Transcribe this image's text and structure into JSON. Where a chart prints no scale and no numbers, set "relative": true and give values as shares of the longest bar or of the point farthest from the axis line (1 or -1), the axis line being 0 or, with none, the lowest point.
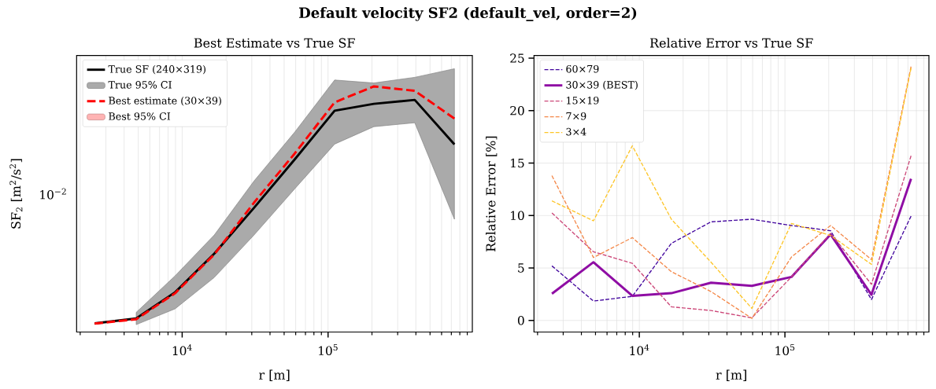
{
  "chart_data": [
    {
      "type": "line",
      "relative": true,
      "title": "Best Estimate vs True SF",
      "xlabel": "r [m]",
      "ylabel": "SF$_{2}$ [m$^{2}$/s$^{2}$]",
      "annotations": [
        "Default velocity SF2 (default_vel, order=2)",
        "10$^{−2}$"
      ],
      "x": [
        2510,
        4840,
        8950,
        16600,
        31100,
        59300,
        110900,
        206000,
        393000,
        735000
      ],
      "series": [
        {
          "name": "True SF (240×319)",
          "type": "line",
          "line_style": "solid",
          "color": "#000000",
          "values": [
            0.0349,
            0.0556,
            0.162,
            0.319,
            0.506,
            0.704,
            0.901,
            0.929,
            0.945,
            0.764
          ]
        },
        {
          "name": "True 95% CI",
          "type": "line",
          "color": "#aaaaaa",
          "values": [
            null,
            null,
            null,
            null,
            null,
            null,
            null,
            null,
            null,
            null
          ],
          "lower": [
            null,
            0.03,
            0.0945,
            0.222,
            0.395,
            0.584,
            0.765,
            0.836,
            0.852,
            0.459
          ],
          "upper": [
            null,
            0.0799,
            0.229,
            0.395,
            0.615,
            0.815,
            1.026,
            1.014,
            1.037,
            1.072
          ]
        },
        {
          "name": "Best estimate (30×39)",
          "type": "line",
          "line_style": "dashed",
          "color": "#ff0000",
          "values": [
            0.0342,
            0.052,
            0.158,
            0.316,
            0.527,
            0.728,
            0.935,
            1.0,
            0.982,
            0.869
          ]
        },
        {
          "name": "Best 95% CI",
          "type": "line",
          "color": "#ffb3b3",
          "values": [
            null,
            null,
            null,
            null,
            null,
            null,
            null,
            null,
            null,
            null
          ],
          "lower": [
            0.033,
            0.0497,
            0.153,
            null,
            null,
            null,
            null,
            null,
            null,
            null
          ],
          "upper": [
            0.0353,
            0.0538,
            0.162,
            null,
            null,
            null,
            null,
            null,
            null,
            null
          ]
        }
      ],
      "xlim": [
        1890,
        975000
      ],
      "xticks": [
        {
          "value": 2000,
          "label": null
        },
        {
          "value": 3000,
          "label": null
        },
        {
          "value": 4000,
          "label": null
        },
        {
          "value": 5000,
          "label": null
        },
        {
          "value": 6000,
          "label": null
        },
        {
          "value": 7000,
          "label": null
        },
        {
          "value": 8000,
          "label": null
        },
        {
          "value": 9000,
          "label": null
        },
        {
          "value": 10000,
          "label": "10$^{4}$"
        },
        {
          "value": 20000,
          "label": null
        },
        {
          "value": 30000,
          "label": null
        },
        {
          "value": 40000,
          "label": null
        },
        {
          "value": 50000,
          "label": null
        },
        {
          "value": 60000,
          "label": null
        },
        {
          "value": 70000,
          "label": null
        },
        {
          "value": 80000,
          "label": null
        },
        {
          "value": 90000,
          "label": null
        },
        {
          "value": 100000,
          "label": "10$^{5}$"
        },
        {
          "value": 200000,
          "label": null
        },
        {
          "value": 300000,
          "label": null
        },
        {
          "value": 400000,
          "label": null
        },
        {
          "value": 500000,
          "label": null
        },
        {
          "value": 600000,
          "label": null
        },
        {
          "value": 700000,
          "label": null
        },
        {
          "value": 800000,
          "label": null
        },
        {
          "value": 900000,
          "label": null
        }
      ],
      "log": "x",
      "grid": "x",
      "legend": "top left"
    },
    {
      "type": "line",
      "title": "Relative Error vs True SF",
      "xlabel": "r [m]",
      "ylabel": "Relative Error [%]",
      "x": [
        2510,
        4840,
        8950,
        16600,
        31100,
        59300,
        110900,
        206000,
        393000,
        735000
      ],
      "series": [
        {
          "name": "60×79",
          "line_style": "dashed",
          "color": "#41049d",
          "values": [
            5.2,
            1.85,
            2.3,
            7.35,
            9.4,
            9.65,
            9.05,
            8.55,
            2.0,
            9.95
          ]
        },
        {
          "name": "30×39 (BEST)",
          "line_style": "solid",
          "color": "#8f0da4",
          "values": [
            2.55,
            5.55,
            2.35,
            2.6,
            3.6,
            3.3,
            4.15,
            8.2,
            2.45,
            13.5
          ]
        },
        {
          "name": "15×19",
          "line_style": "dashed",
          "color": "#cc4778",
          "values": [
            10.25,
            6.55,
            5.45,
            1.3,
            0.95,
            0.25,
            4.15,
            8.3,
            3.45,
            15.7
          ]
        },
        {
          "name": "7×9",
          "line_style": "dashed",
          "color": "#f48849",
          "values": [
            13.8,
            6.0,
            7.9,
            4.65,
            2.75,
            0.2,
            6.05,
            9.05,
            5.8,
            24.2
          ]
        },
        {
          "name": "3×4",
          "line_style": "dashed",
          "color": "#fdc527",
          "values": [
            11.4,
            9.5,
            16.65,
            9.65,
            5.55,
            1.15,
            9.25,
            8.1,
            5.35,
            24.05
          ]
        }
      ],
      "xlim": [
        1890,
        975000
      ],
      "ylim": [
        -1.1,
        25.25
      ],
      "xticks": [
        {
          "value": 2000,
          "label": null
        },
        {
          "value": 3000,
          "label": null
        },
        {
          "value": 4000,
          "label": null
        },
        {
          "value": 5000,
          "label": null
        },
        {
          "value": 6000,
          "label": null
        },
        {
          "value": 7000,
          "label": null
        },
        {
          "value": 8000,
          "label": null
        },
        {
          "value": 9000,
          "label": null
        },
        {
          "value": 10000,
          "label": "10$^{4}$"
        },
        {
          "value": 20000,
          "label": null
        },
        {
          "value": 30000,
          "label": null
        },
        {
          "value": 40000,
          "label": null
        },
        {
          "value": 50000,
          "label": null
        },
        {
          "value": 60000,
          "label": null
        },
        {
          "value": 70000,
          "label": null
        },
        {
          "value": 80000,
          "label": null
        },
        {
          "value": 90000,
          "label": null
        },
        {
          "value": 100000,
          "label": "10$^{5}$"
        },
        {
          "value": 200000,
          "label": null
        },
        {
          "value": 300000,
          "label": null
        },
        {
          "value": 400000,
          "label": null
        },
        {
          "value": 500000,
          "label": null
        },
        {
          "value": 600000,
          "label": null
        },
        {
          "value": 700000,
          "label": null
        },
        {
          "value": 800000,
          "label": null
        },
        {
          "value": 900000,
          "label": null
        }
      ],
      "yticks": [
        0,
        5,
        10,
        15,
        20,
        25
      ],
      "log": "x",
      "grid": true,
      "legend": "top left"
    }
  ]
}
